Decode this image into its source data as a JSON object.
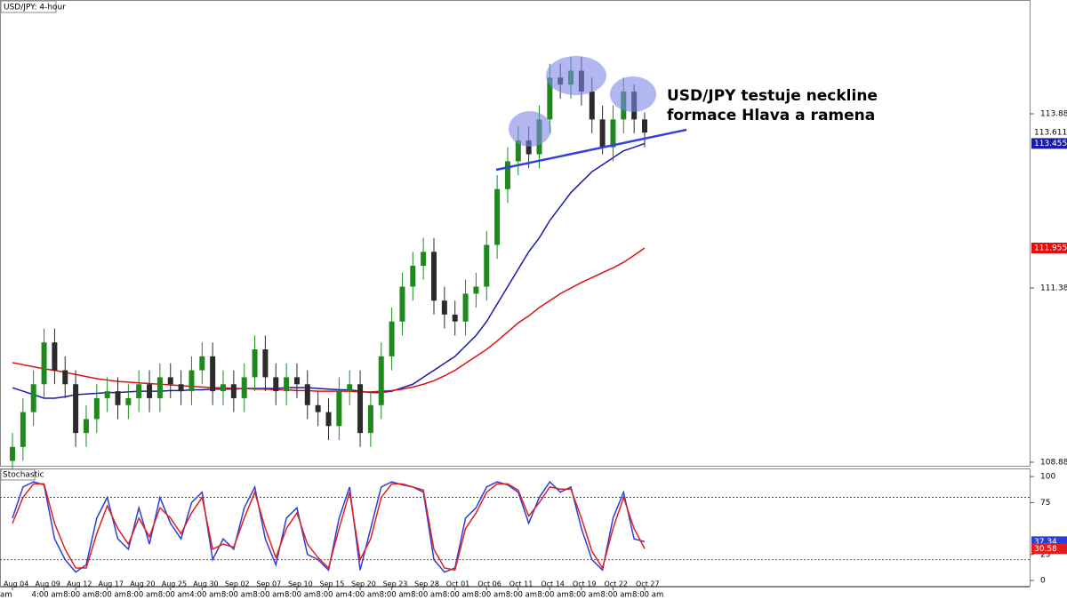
{
  "chart_data": [
    {
      "type": "candlestick",
      "title": "USD/JPY: 4-hour",
      "annotation": [
        "USD/JPY testuje neckline",
        "formace Hlava a ramena"
      ],
      "categories": [
        "Aug 04",
        null,
        null,
        "Aug 09",
        null,
        null,
        "Aug 12",
        null,
        null,
        "Aug 17",
        null,
        null,
        "Aug 20",
        null,
        null,
        "Aug 25",
        null,
        null,
        "Aug 30",
        null,
        null,
        "Sep 02",
        null,
        null,
        "Sep 07",
        null,
        null,
        "Sep 10",
        null,
        null,
        "Sep 15",
        null,
        null,
        "Sep 20",
        null,
        null,
        "Sep 23",
        null,
        null,
        "Sep 28",
        null,
        null,
        "Oct 01",
        null,
        null,
        "Oct 06",
        null,
        null,
        "Oct 11",
        null,
        null,
        "Oct 14",
        null,
        null,
        "Oct 19",
        null,
        null,
        "Oct 22",
        null,
        null,
        "Oct 27"
      ],
      "category_times": [
        "am",
        null,
        null,
        "4:00 am",
        null,
        null,
        "8:00 am",
        null,
        null,
        "8:00 am",
        null,
        null,
        "8:00 am",
        null,
        null,
        "8:00 am",
        null,
        null,
        "4:00 am",
        null,
        null,
        "8:00 am",
        null,
        null,
        "8:00 am",
        null,
        null,
        "8:00 am",
        null,
        null,
        "8:00 am",
        null,
        null,
        "4:00 am",
        null,
        null,
        "8:00 am",
        null,
        null,
        "8:00 am",
        null,
        null,
        "8:00 am",
        null,
        null,
        "8:00 am",
        null,
        null,
        "8:00 am",
        null,
        null,
        "8:00 am",
        null,
        null,
        "8:00 am",
        null,
        null,
        "8:00 am",
        null,
        null,
        "8:00 am"
      ],
      "up_color": "#1e8a1e",
      "down_color": "#2b2b2b",
      "ohlc": [
        [
          108.9,
          109.3,
          108.7,
          109.1
        ],
        [
          109.1,
          109.8,
          108.9,
          109.6
        ],
        [
          109.6,
          110.2,
          109.4,
          110.0
        ],
        [
          110.0,
          110.8,
          109.8,
          110.6
        ],
        [
          110.6,
          110.8,
          110.0,
          110.2
        ],
        [
          110.2,
          110.4,
          109.8,
          110.0
        ],
        [
          110.0,
          110.2,
          109.1,
          109.3
        ],
        [
          109.3,
          109.7,
          109.1,
          109.5
        ],
        [
          109.5,
          110.0,
          109.3,
          109.8
        ],
        [
          109.8,
          110.1,
          109.6,
          109.9
        ],
        [
          109.9,
          110.1,
          109.5,
          109.7
        ],
        [
          109.7,
          110.0,
          109.5,
          109.8
        ],
        [
          109.8,
          110.2,
          109.6,
          110.0
        ],
        [
          110.0,
          110.2,
          109.6,
          109.8
        ],
        [
          109.8,
          110.3,
          109.6,
          110.1
        ],
        [
          110.1,
          110.3,
          109.8,
          110.0
        ],
        [
          110.0,
          110.2,
          109.7,
          109.9
        ],
        [
          109.9,
          110.4,
          109.7,
          110.2
        ],
        [
          110.2,
          110.6,
          110.0,
          110.4
        ],
        [
          110.4,
          110.6,
          109.7,
          109.9
        ],
        [
          109.9,
          110.2,
          109.7,
          110.0
        ],
        [
          110.0,
          110.2,
          109.6,
          109.8
        ],
        [
          109.8,
          110.3,
          109.6,
          110.1
        ],
        [
          110.1,
          110.7,
          109.9,
          110.5
        ],
        [
          110.5,
          110.7,
          109.9,
          110.1
        ],
        [
          110.1,
          110.3,
          109.7,
          109.9
        ],
        [
          109.9,
          110.3,
          109.7,
          110.1
        ],
        [
          110.1,
          110.3,
          109.8,
          110.0
        ],
        [
          110.0,
          110.2,
          109.5,
          109.7
        ],
        [
          109.7,
          109.9,
          109.4,
          109.6
        ],
        [
          109.6,
          109.8,
          109.2,
          109.4
        ],
        [
          109.4,
          110.1,
          109.2,
          109.9
        ],
        [
          109.9,
          110.2,
          109.7,
          110.0
        ],
        [
          110.0,
          110.2,
          109.1,
          109.3
        ],
        [
          109.3,
          109.9,
          109.1,
          109.7
        ],
        [
          109.7,
          110.6,
          109.5,
          110.4
        ],
        [
          110.4,
          111.1,
          110.2,
          110.9
        ],
        [
          110.9,
          111.6,
          110.7,
          111.4
        ],
        [
          111.4,
          111.9,
          111.2,
          111.7
        ],
        [
          111.7,
          112.1,
          111.5,
          111.9
        ],
        [
          111.9,
          112.1,
          111.0,
          111.2
        ],
        [
          111.2,
          111.4,
          110.8,
          111.0
        ],
        [
          111.0,
          111.2,
          110.7,
          110.9
        ],
        [
          110.9,
          111.5,
          110.7,
          111.3
        ],
        [
          111.3,
          111.6,
          111.1,
          111.4
        ],
        [
          111.4,
          112.2,
          111.2,
          112.0
        ],
        [
          112.0,
          113.0,
          111.8,
          112.8
        ],
        [
          112.8,
          113.4,
          112.6,
          113.2
        ],
        [
          113.2,
          113.7,
          113.0,
          113.5
        ],
        [
          113.5,
          113.7,
          113.1,
          113.3
        ],
        [
          113.3,
          114.0,
          113.1,
          113.8
        ],
        [
          113.8,
          114.6,
          113.6,
          114.4
        ],
        [
          114.4,
          114.6,
          114.1,
          114.3
        ],
        [
          114.3,
          114.7,
          114.1,
          114.5
        ],
        [
          114.5,
          114.7,
          114.0,
          114.2
        ],
        [
          114.2,
          114.4,
          113.6,
          113.8
        ],
        [
          113.8,
          114.0,
          113.3,
          113.4
        ],
        [
          113.4,
          114.0,
          113.2,
          113.8
        ],
        [
          113.8,
          114.4,
          113.6,
          114.2
        ],
        [
          114.2,
          114.3,
          113.6,
          113.8
        ],
        [
          113.8,
          113.9,
          113.4,
          113.611
        ]
      ],
      "series": [
        {
          "color": "#1a1aa8",
          "values": [
            109.95,
            109.9,
            109.85,
            109.8,
            109.8,
            109.82,
            109.85,
            109.86,
            109.87,
            109.88,
            109.88,
            109.89,
            109.9,
            109.9,
            109.9,
            109.91,
            109.91,
            109.92,
            109.92,
            109.93,
            109.93,
            109.93,
            109.94,
            109.94,
            109.94,
            109.94,
            109.95,
            109.95,
            109.95,
            109.94,
            109.93,
            109.92,
            109.92,
            109.9,
            109.88,
            109.88,
            109.9,
            109.95,
            110.0,
            110.1,
            110.2,
            110.3,
            110.4,
            110.55,
            110.7,
            110.9,
            111.15,
            111.4,
            111.65,
            111.9,
            112.1,
            112.35,
            112.55,
            112.75,
            112.9,
            113.05,
            113.15,
            113.25,
            113.35,
            113.4,
            113.455
          ]
        },
        {
          "color": "#e01010",
          "values": [
            110.31,
            110.28,
            110.25,
            110.22,
            110.2,
            110.17,
            110.14,
            110.11,
            110.08,
            110.06,
            110.04,
            110.03,
            110.02,
            110.01,
            110.0,
            109.99,
            109.98,
            109.97,
            109.96,
            109.95,
            109.95,
            109.94,
            109.94,
            109.93,
            109.93,
            109.92,
            109.92,
            109.91,
            109.91,
            109.9,
            109.9,
            109.9,
            109.9,
            109.89,
            109.89,
            109.9,
            109.91,
            109.93,
            109.96,
            110.0,
            110.05,
            110.12,
            110.2,
            110.3,
            110.4,
            110.5,
            110.62,
            110.75,
            110.88,
            110.98,
            111.1,
            111.2,
            111.3,
            111.38,
            111.46,
            111.53,
            111.6,
            111.67,
            111.75,
            111.85,
            111.955
          ]
        }
      ],
      "last_label_value": 113.611,
      "ylim": [
        108.817,
        115.514
      ],
      "yticks": [
        108.881,
        111.381,
        113.881
      ]
    },
    {
      "type": "stochastic",
      "title": "Stochastic",
      "series": [
        {
          "color": "#2a3fd8",
          "values": [
            60,
            90,
            95,
            92,
            40,
            20,
            8,
            15,
            60,
            80,
            40,
            30,
            70,
            35,
            80,
            55,
            40,
            75,
            85,
            20,
            40,
            30,
            70,
            90,
            40,
            15,
            60,
            70,
            25,
            20,
            10,
            60,
            90,
            10,
            50,
            90,
            95,
            92,
            90,
            85,
            20,
            8,
            12,
            60,
            70,
            90,
            95,
            92,
            85,
            55,
            80,
            95,
            85,
            90,
            50,
            20,
            10,
            60,
            85,
            40,
            37.34
          ]
        },
        {
          "color": "#e02020",
          "values": [
            55,
            80,
            93,
            93,
            55,
            30,
            12,
            12,
            45,
            72,
            50,
            35,
            60,
            42,
            70,
            60,
            45,
            65,
            80,
            30,
            35,
            32,
            60,
            85,
            50,
            22,
            50,
            65,
            35,
            22,
            12,
            50,
            85,
            20,
            40,
            80,
            93,
            93,
            90,
            87,
            30,
            12,
            10,
            50,
            65,
            85,
            93,
            93,
            87,
            62,
            75,
            90,
            88,
            88,
            60,
            28,
            12,
            50,
            80,
            50,
            30.58
          ]
        }
      ],
      "levels": [
        80,
        20
      ],
      "ylim": [
        -6,
        107
      ],
      "yticks": [
        100,
        75,
        25,
        0
      ]
    }
  ]
}
